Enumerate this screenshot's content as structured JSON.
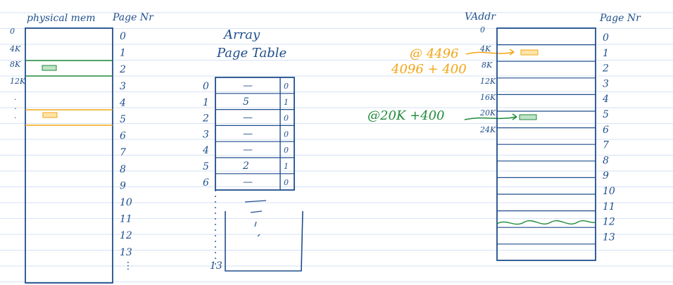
{
  "physical_memory": {
    "title": "physical mem",
    "page_nr_label": "Page Nr",
    "addr_labels": [
      "0",
      "4K",
      "8K",
      "12K"
    ],
    "page_numbers": [
      "0",
      "1",
      "2",
      "3",
      "4",
      "5",
      "6",
      "7",
      "8",
      "9",
      "10",
      "11",
      "12",
      "13"
    ],
    "highlight_orange": "#f2a516",
    "highlight_green": "#1f8a3a"
  },
  "page_table": {
    "title_line1": "Array",
    "title_line2": "Page Table",
    "row_indices": [
      "0",
      "1",
      "2",
      "3",
      "4",
      "5",
      "6"
    ],
    "entries": [
      {
        "frame": "—",
        "valid": "0"
      },
      {
        "frame": "5",
        "valid": "1"
      },
      {
        "frame": "—",
        "valid": "0"
      },
      {
        "frame": "—",
        "valid": "0"
      },
      {
        "frame": "—",
        "valid": "0"
      },
      {
        "frame": "2",
        "valid": "1"
      },
      {
        "frame": "—",
        "valid": "0"
      }
    ],
    "last_index": "13"
  },
  "virtual_memory": {
    "title": "VAddr",
    "page_nr_label": "Page Nr",
    "addr_labels": [
      "0",
      "4K",
      "8K",
      "12K",
      "16K",
      "20K",
      "24K"
    ],
    "page_numbers": [
      "0",
      "1",
      "2",
      "3",
      "4",
      "5",
      "6",
      "7",
      "8",
      "9",
      "10",
      "11",
      "12",
      "13"
    ]
  },
  "annotations": {
    "orange_line1": "@ 4496",
    "orange_line2": "4096 + 400",
    "green_line1": "@20K +400"
  },
  "colors": {
    "ink_blue": "#1f4e8c",
    "orange": "#f2a516",
    "green": "#1f8a3a",
    "ruled_line": "#c9d8f2"
  }
}
